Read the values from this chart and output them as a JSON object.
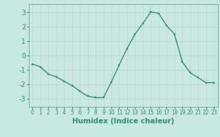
{
  "x": [
    0,
    1,
    2,
    3,
    4,
    5,
    6,
    7,
    8,
    9,
    10,
    11,
    12,
    13,
    14,
    15,
    16,
    17,
    18,
    19,
    20,
    21,
    22,
    23
  ],
  "y": [
    -0.6,
    -0.8,
    -1.3,
    -1.5,
    -1.8,
    -2.1,
    -2.5,
    -2.85,
    -2.95,
    -2.95,
    -1.85,
    -0.65,
    0.5,
    1.5,
    2.25,
    3.05,
    2.95,
    2.1,
    1.5,
    -0.45,
    -1.2,
    -1.55,
    -1.9,
    -1.9
  ],
  "line_color": "#2e8b78",
  "marker_color": "#2e8b78",
  "bg_color": "#c8e8e0",
  "grid_color": "#b8d8d0",
  "grid_color_minor": "#d4e8e4",
  "xlabel": "Humidex (Indice chaleur)",
  "xlim": [
    -0.5,
    23.5
  ],
  "ylim": [
    -3.6,
    3.6
  ],
  "yticks": [
    -3,
    -2,
    -1,
    0,
    1,
    2,
    3
  ],
  "xticks": [
    0,
    1,
    2,
    3,
    4,
    5,
    6,
    7,
    8,
    9,
    10,
    11,
    12,
    13,
    14,
    15,
    16,
    17,
    18,
    19,
    20,
    21,
    22,
    23
  ],
  "xlabel_fontsize": 7.5,
  "ytick_fontsize": 7,
  "xtick_fontsize": 5.5
}
